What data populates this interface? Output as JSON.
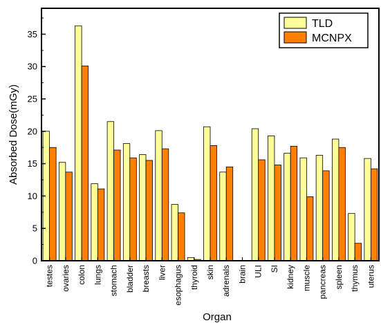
{
  "chart_data": {
    "type": "bar",
    "xlabel": "Organ",
    "ylabel": "Absorbed Dose(mGy)",
    "ylim": [
      0,
      39
    ],
    "yticks": [
      0,
      5,
      10,
      15,
      20,
      25,
      30,
      35
    ],
    "grid": false,
    "legend_position": "top-right",
    "categories": [
      "testes",
      "ovaries",
      "colon",
      "lungs",
      "stomach",
      "bladder",
      "breasts",
      "liver",
      "esophagus",
      "thyroid",
      "skin",
      "adrenals",
      "brain",
      "ULI",
      "SI",
      "kidney",
      "muscle",
      "pancreas",
      "spleen",
      "thymus",
      "uterus"
    ],
    "series": [
      {
        "name": "TLD",
        "color": "#ffff99",
        "values": [
          20.0,
          15.2,
          36.3,
          11.9,
          21.5,
          18.1,
          16.4,
          20.1,
          8.7,
          0.5,
          20.7,
          13.7,
          0.0,
          20.4,
          19.3,
          16.6,
          15.9,
          16.3,
          18.8,
          7.3,
          15.8
        ]
      },
      {
        "name": "MCNPX",
        "color": "#ff8000",
        "values": [
          17.5,
          13.7,
          30.1,
          11.1,
          17.1,
          15.9,
          15.5,
          17.3,
          7.4,
          0.2,
          17.8,
          14.5,
          0.0,
          15.6,
          14.8,
          17.7,
          9.9,
          13.9,
          17.5,
          2.7,
          14.2
        ]
      }
    ]
  }
}
